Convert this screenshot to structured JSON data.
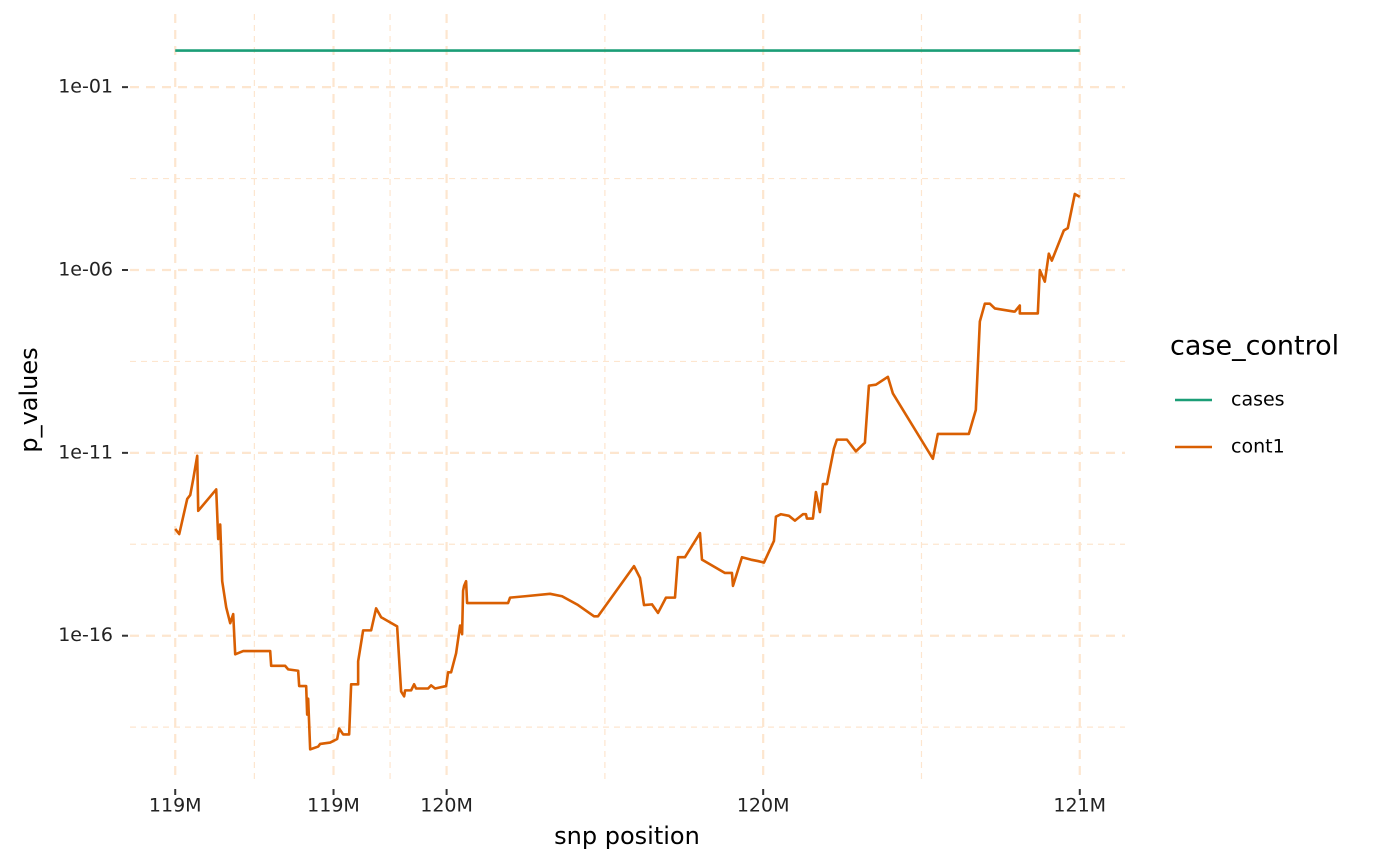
{
  "chart_data": {
    "type": "line",
    "x_label": "snp position",
    "y_label": "p_values",
    "legend_title": "case_control",
    "legend_position": "right",
    "yscale": "log",
    "grid": true,
    "xlim": [
      118900000,
      121100000
    ],
    "xticks": [
      {
        "value": 119000000,
        "label": "119M"
      },
      {
        "value": 119350000,
        "label": "119M"
      },
      {
        "value": 119600000,
        "label": "120M"
      },
      {
        "value": 120300000,
        "label": "120M"
      },
      {
        "value": 121000000,
        "label": "121M"
      }
    ],
    "ylim": [
      1e-20,
      10
    ],
    "yticks": [
      {
        "value": 0.1,
        "label": "1e-01"
      },
      {
        "value": 1e-06,
        "label": "1e-06"
      },
      {
        "value": 1e-11,
        "label": "1e-11"
      },
      {
        "value": 1e-16,
        "label": "1e-16"
      }
    ],
    "series": [
      {
        "name": "cases",
        "color": "#1b9e77",
        "x": [
          119000000,
          121000000
        ],
        "values": [
          1,
          1
        ]
      },
      {
        "name": "cont1",
        "color": "#d95f02",
        "x": [
          119000000,
          119008840,
          119026520,
          119033150,
          119039780,
          119048620,
          119050830,
          119090610,
          119095030,
          119099450,
          119103870,
          119112710,
          119121550,
          119128180,
          119132600,
          119150280,
          119209950,
          119212160,
          119243100,
          119249730,
          119271830,
          119274040,
          119289510,
          119291720,
          119293930,
          119298350,
          119316030,
          119320450,
          119342550,
          119358020,
          119362440,
          119371280,
          119384540,
          119388960,
          119404430,
          119404430,
          119415480,
          119433160,
          119444210,
          119455260,
          119490620,
          119499460,
          119506090,
          119508300,
          119521560,
          119528190,
          119532610,
          119559130,
          119565760,
          119574600,
          119598910,
          119603330,
          119609960,
          119621010,
          119629850,
          119634270,
          119636480,
          119638690,
          119643110,
          119645320,
          119735930,
          119740350,
          119773500,
          119828750,
          119855270,
          119890630,
          119925990,
          119934830,
          120014390,
          120027650,
          120036490,
          120054170,
          120067430,
          120085110,
          120089530,
          120105000,
          120111630,
          120127100,
          120160250,
          120164670,
          120215500,
          120230970,
          120233180,
          120253070,
          120272960,
          120288430,
          120301690,
          120323790,
          120328210,
          120339260,
          120356940,
          120370200,
          120387880,
          120394510,
          120396720,
          120409980,
          120416610,
          120425450,
          120432080,
          120440920,
          120456390,
          120463020,
          120485120,
          120505010,
          120524900,
          120533740,
          120549210,
          120575730,
          120586780,
          120675180,
          120686230,
          120754740,
          120770210,
          120779050,
          120790100,
          120801150,
          120812200,
          120854190,
          120856400,
          120867450,
          120867450,
          120907230,
          120911650,
          120922700,
          120931540,
          120938170,
          120964690,
          120973530,
          120989000,
          121000000
        ],
        "values": [
          8.3e-14,
          6e-14,
          5.5e-13,
          7e-13,
          1.9e-12,
          8.3e-12,
          2.6e-13,
          1e-12,
          4.4e-14,
          1.1e-13,
          3.1e-15,
          6e-16,
          2.2e-16,
          3.9e-16,
          3.1e-17,
          3.8e-17,
          3.8e-17,
          1.5e-17,
          1.5e-17,
          1.2e-17,
          1.1e-17,
          4.2e-18,
          4.2e-18,
          7e-19,
          1.9e-18,
          7.8e-20,
          9.3e-20,
          1.1e-19,
          1.2e-19,
          1.5e-19,
          2.9e-19,
          2e-19,
          2e-19,
          4.7e-18,
          4.7e-18,
          2e-17,
          1.4e-16,
          1.4e-16,
          5.6e-16,
          3.2e-16,
          1.8e-16,
          3e-18,
          2.2e-18,
          3.2e-18,
          3.2e-18,
          4.7e-18,
          3.6e-18,
          3.6e-18,
          4.4e-18,
          3.6e-18,
          4.2e-18,
          1e-17,
          1e-17,
          3.3e-17,
          1.9e-16,
          1.1e-16,
          1.7e-15,
          2.3e-15,
          3.1e-15,
          7.8e-16,
          7.8e-16,
          1.1e-15,
          1.2e-15,
          1.4e-15,
          1.2e-15,
          6.9e-16,
          3.4e-16,
          3.4e-16,
          8e-15,
          3.8e-15,
          6.9e-16,
          7.2e-16,
          4.2e-16,
          1.1e-15,
          1.1e-15,
          1.1e-15,
          1.4e-14,
          1.4e-14,
          6.4e-14,
          1.2e-14,
          5.2e-15,
          5.2e-15,
          2.3e-15,
          1.4e-14,
          1.2e-14,
          1.1e-14,
          1e-14,
          3.9e-14,
          1.8e-13,
          2.1e-13,
          1.9e-13,
          1.4e-13,
          2.1e-13,
          2.1e-13,
          1.6e-13,
          1.6e-13,
          8.5e-13,
          2.4e-13,
          1.4e-12,
          1.4e-12,
          1.3e-11,
          2.3e-11,
          2.3e-11,
          1.1e-11,
          1.9e-11,
          6.9e-10,
          7.3e-10,
          1.2e-09,
          4.2e-10,
          6.9e-12,
          3.3e-11,
          3.3e-11,
          1.5e-10,
          3.9e-08,
          1.2e-07,
          1.2e-07,
          8.9e-08,
          7.3e-08,
          7.3e-08,
          1.07e-07,
          6.5e-08,
          6.5e-08,
          1e-06,
          4.8e-07,
          2.8e-06,
          1.8e-06,
          1.2e-05,
          1.4e-05,
          0.00012,
          0.0001
        ]
      }
    ]
  }
}
